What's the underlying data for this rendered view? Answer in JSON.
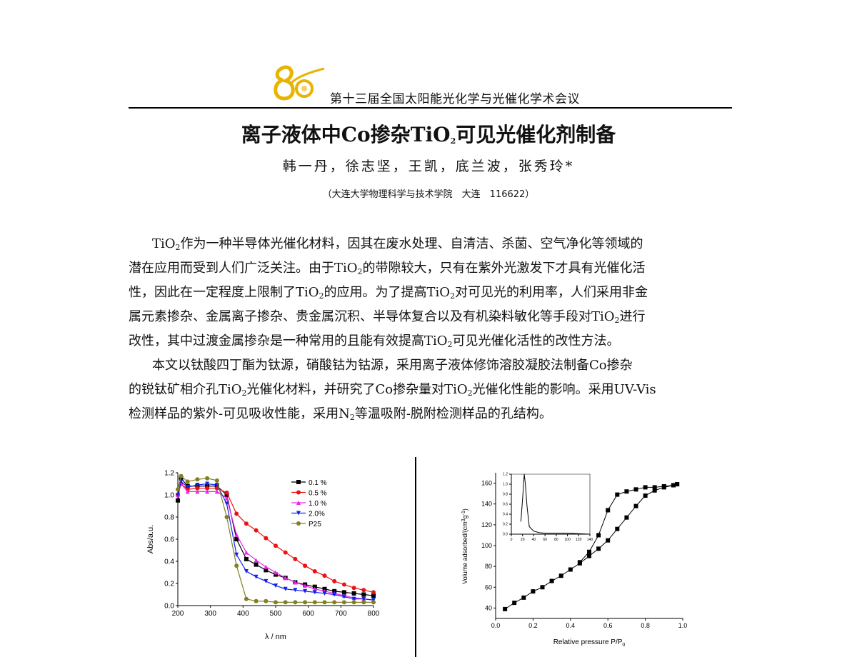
{
  "header": {
    "logo_text": "80",
    "conference": "第十三届全国太阳能光化学与光催化学术会议"
  },
  "title": {
    "before": "离子液体中Co掺杂TiO",
    "sub": "2",
    "after": "可见光催化剂制备"
  },
  "authors": "韩一丹，徐志坚，王凯，底兰波，张秀玲*",
  "affiliation": "（大连大学物理科学与技术学院　大连　116622）",
  "body": {
    "paragraphs": [
      [
        [
          "TiO",
          {
            "sub": "2"
          },
          "作为一种半导体光催化材料，因其在废水处理、自清洁、杀菌、空气净化等领域的"
        ],
        [
          "潜在应用而受到人们广泛关注。由于TiO",
          {
            "sub": "2"
          },
          "的带隙较大，只有在紫外光激发下才具有光催化活"
        ],
        [
          "性，因此在一定程度上限制了TiO",
          {
            "sub": "2"
          },
          "的应用。为了提高TiO",
          {
            "sub": "2"
          },
          "对可见光的利用率，人们采用非金"
        ],
        [
          "属元素掺杂、金属离子掺杂、贵金属沉积、半导体复合以及有机染料敏化等手段对TiO",
          {
            "sub": "2"
          },
          "进行"
        ],
        [
          "改性，其中过渡金属掺杂是一种常用的且能有效提高TiO",
          {
            "sub": "2"
          },
          "可见光催化活性的改性方法。"
        ]
      ],
      [
        [
          "本文以钛酸四丁酯为钛源，硝酸钴为钴源，采用离子液体修饰溶胶凝胶法制备Co掺杂"
        ],
        [
          "的锐钛矿相介孔TiO",
          {
            "sub": "2"
          },
          "光催化材料，并研究了Co掺杂量对TiO",
          {
            "sub": "2"
          },
          "光催化性能的影响。采用UV-Vis"
        ],
        [
          "检测样品的紫外-可见吸收性能，采用N",
          {
            "sub": "2"
          },
          "等温吸附-脱附检测样品的孔结构。"
        ]
      ]
    ]
  },
  "chart_data": [
    {
      "type": "line",
      "xlabel": "λ / nm",
      "ylabel": "Abs/a.u.",
      "xlim": [
        200,
        800
      ],
      "ylim": [
        0,
        1.2
      ],
      "xticks": [
        200,
        300,
        400,
        500,
        600,
        700,
        800
      ],
      "yticks": [
        0.0,
        0.2,
        0.4,
        0.6,
        0.8,
        1.0,
        1.2
      ],
      "legend_placement": "top-right",
      "x": [
        200,
        210,
        230,
        260,
        290,
        320,
        350,
        380,
        410,
        440,
        470,
        500,
        530,
        560,
        590,
        620,
        650,
        680,
        710,
        740,
        770,
        800
      ],
      "series": [
        {
          "name": "0.1 %",
          "color": "#000000",
          "marker": "square",
          "values": [
            0.95,
            1.15,
            1.08,
            1.08,
            1.08,
            1.08,
            1.0,
            0.6,
            0.42,
            0.37,
            0.32,
            0.28,
            0.25,
            0.21,
            0.19,
            0.17,
            0.15,
            0.13,
            0.12,
            0.11,
            0.1,
            0.09
          ]
        },
        {
          "name": "0.5 %",
          "color": "#ee1111",
          "marker": "circle",
          "values": [
            1.0,
            1.1,
            1.05,
            1.06,
            1.06,
            1.06,
            1.02,
            0.83,
            0.74,
            0.68,
            0.61,
            0.54,
            0.48,
            0.42,
            0.36,
            0.31,
            0.27,
            0.22,
            0.19,
            0.16,
            0.14,
            0.12
          ]
        },
        {
          "name": "1.0 %",
          "color": "#ee22ee",
          "marker": "triangle-up",
          "values": [
            1.0,
            1.1,
            1.03,
            1.03,
            1.03,
            1.03,
            0.97,
            0.64,
            0.48,
            0.41,
            0.35,
            0.3,
            0.25,
            0.21,
            0.18,
            0.15,
            0.13,
            0.11,
            0.09,
            0.07,
            0.06,
            0.05
          ]
        },
        {
          "name": "2.0%",
          "color": "#1122ee",
          "marker": "triangle-down",
          "values": [
            1.0,
            1.12,
            1.07,
            1.09,
            1.1,
            1.09,
            0.92,
            0.46,
            0.31,
            0.26,
            0.22,
            0.18,
            0.15,
            0.14,
            0.13,
            0.12,
            0.11,
            0.1,
            0.08,
            0.06,
            0.06,
            0.05
          ]
        },
        {
          "name": "P25",
          "color": "#808020",
          "marker": "circle",
          "values": [
            1.05,
            1.17,
            1.12,
            1.14,
            1.15,
            1.13,
            0.8,
            0.36,
            0.06,
            0.04,
            0.04,
            0.03,
            0.03,
            0.03,
            0.03,
            0.03,
            0.03,
            0.03,
            0.03,
            0.03,
            0.03,
            0.03
          ]
        }
      ]
    },
    {
      "type": "line",
      "xlabel": "Relative pressure P/P",
      "xlabel_sub": "0",
      "ylabel": "Volume adsorbed/(cm",
      "ylabel_sup": "3",
      "ylabel_end": "g",
      "ylabel_end_sup": "-1",
      "ylabel_close": ")",
      "xlim": [
        0,
        1.0
      ],
      "ylim": [
        30,
        170
      ],
      "xticks": [
        0.0,
        0.2,
        0.4,
        0.6,
        0.8,
        1.0
      ],
      "yticks": [
        40,
        60,
        80,
        100,
        120,
        140,
        160
      ],
      "series": [
        {
          "color": "#000000",
          "marker": "square",
          "x": [
            0.05,
            0.1,
            0.15,
            0.2,
            0.25,
            0.3,
            0.35,
            0.4,
            0.45,
            0.5,
            0.55,
            0.6,
            0.65,
            0.7,
            0.75,
            0.8,
            0.85,
            0.9,
            0.95,
            0.97
          ],
          "values": [
            39,
            45,
            50,
            56,
            60,
            66,
            71,
            77,
            83,
            90,
            97,
            105,
            116,
            127,
            138,
            148,
            153,
            156,
            158,
            159
          ]
        },
        {
          "color": "#000000",
          "marker": "square",
          "x": [
            0.97,
            0.95,
            0.9,
            0.85,
            0.8,
            0.75,
            0.7,
            0.65,
            0.6,
            0.55,
            0.5,
            0.45
          ],
          "values": [
            159,
            158,
            157,
            156,
            156,
            154,
            152,
            149,
            134,
            110,
            94,
            84
          ]
        }
      ],
      "inset": {
        "type": "line",
        "xlim": [
          0,
          140
        ],
        "ylim": [
          0,
          1.2
        ],
        "xticks": [
          0,
          20,
          40,
          60,
          80,
          100,
          120,
          140
        ],
        "yticks": [
          0.0,
          0.2,
          0.4,
          0.6,
          0.8,
          1.0,
          1.2
        ],
        "x": [
          17,
          20,
          23,
          25,
          28,
          32,
          40,
          50,
          60,
          100,
          140
        ],
        "values": [
          0.25,
          0.7,
          1.2,
          1.0,
          0.55,
          0.15,
          0.06,
          0.03,
          0.02,
          0.02,
          0.0
        ]
      }
    }
  ]
}
